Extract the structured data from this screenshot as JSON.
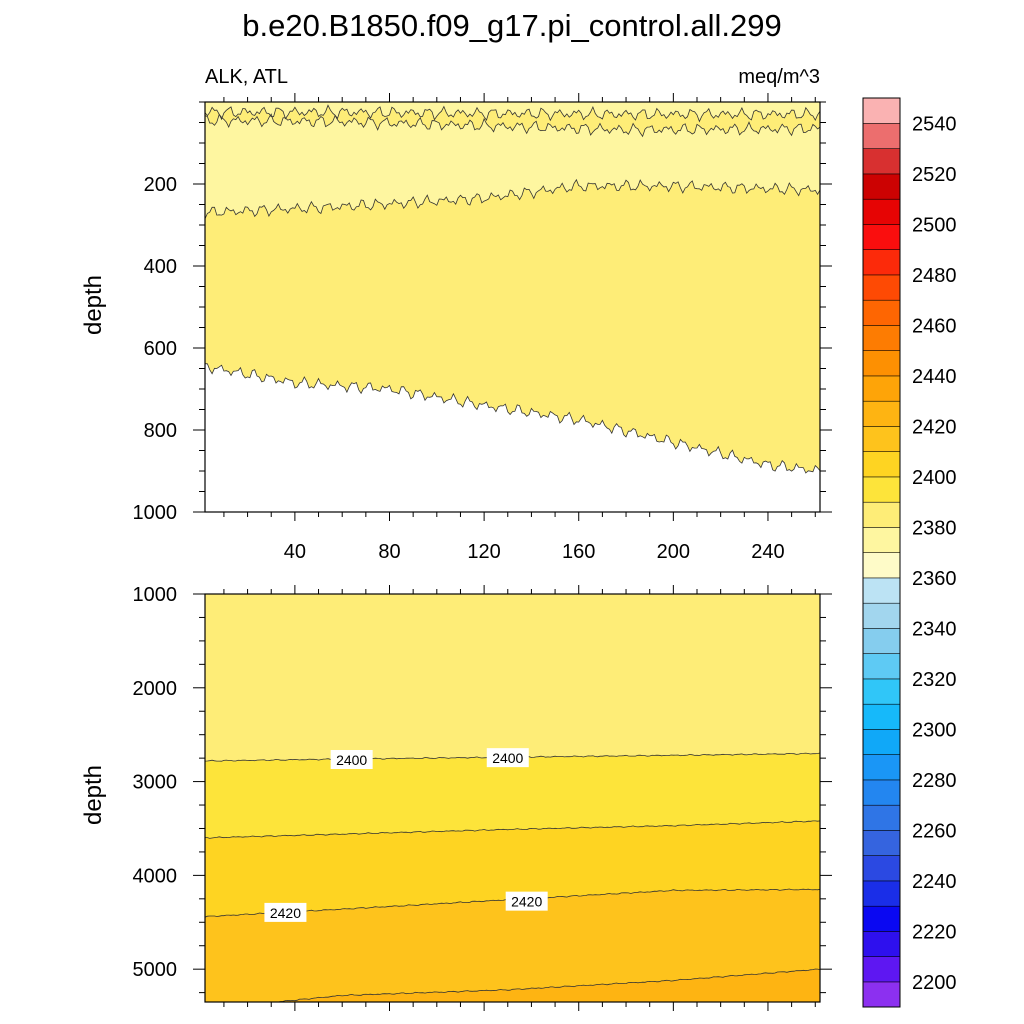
{
  "chart_data": {
    "type": "contour",
    "title": "b.e20.B1850.f09_g17.pi_control.all.299",
    "left_label": "ALK, ATL",
    "right_label": "meq/m^3",
    "x_tick_labels": [
      "40",
      "80",
      "120",
      "160",
      "200",
      "240"
    ],
    "x_ticks": [
      40,
      80,
      120,
      160,
      200,
      240
    ],
    "xlim": [
      2,
      262
    ],
    "colorbar": {
      "levels": [
        2200,
        2210,
        2220,
        2230,
        2240,
        2250,
        2260,
        2270,
        2280,
        2290,
        2300,
        2310,
        2320,
        2330,
        2340,
        2350,
        2360,
        2370,
        2380,
        2390,
        2400,
        2410,
        2420,
        2430,
        2440,
        2450,
        2460,
        2470,
        2480,
        2490,
        2500,
        2510,
        2520,
        2530,
        2540,
        2550
      ],
      "colors": [
        "#8c30f0",
        "#5e17f2",
        "#2e10ee",
        "#0a08f2",
        "#1a2ee8",
        "#2b49e2",
        "#3564df",
        "#2f75e6",
        "#2386f0",
        "#1a96f6",
        "#10a8f8",
        "#16b9fa",
        "#30c6f8",
        "#5ecaf4",
        "#85cdee",
        "#a2d6ee",
        "#bce3f4",
        "#fefbc8",
        "#fef6a0",
        "#feed77",
        "#fde43a",
        "#fed422",
        "#fec31c",
        "#feb412",
        "#fea408",
        "#fd9002",
        "#fd7c02",
        "#fe6602",
        "#fe4a04",
        "#fc2a0a",
        "#fa0e0e",
        "#e60404",
        "#cc0202",
        "#d83030",
        "#ec6e6e",
        "#fab2b2"
      ],
      "tick_labels": [
        "2200",
        "2220",
        "2240",
        "2260",
        "2280",
        "2300",
        "2320",
        "2340",
        "2360",
        "2380",
        "2400",
        "2420",
        "2440",
        "2460",
        "2480",
        "2500",
        "2520",
        "2540"
      ]
    },
    "panels": [
      {
        "name": "upper",
        "ylabel": "depth",
        "ylim": [
          0,
          1000
        ],
        "y_ticks": [
          200,
          400,
          600,
          800,
          1000
        ],
        "y_tick_labels": [
          "200",
          "400",
          "600",
          "800",
          "1000"
        ],
        "show_x_labels": true,
        "regions_top_to_bottom": [
          2380,
          2390,
          2380,
          2390
        ],
        "contours": [
          {
            "level": 2380,
            "x": [
              2,
              60,
              120,
              180,
              262
            ],
            "depth": [
              25,
              25,
              28,
              30,
              30
            ]
          },
          {
            "level": 2390,
            "x": [
              2,
              60,
              120,
              180,
              262
            ],
            "depth": [
              45,
              48,
              58,
              68,
              65
            ]
          },
          {
            "level": 2390,
            "x": [
              2,
              60,
              120,
              160,
              200,
              262
            ],
            "depth": [
              270,
              255,
              235,
              205,
              205,
              215
            ]
          },
          {
            "level": 2390,
            "x": [
              2,
              40,
              80,
              120,
              160,
              200,
              240,
              262
            ],
            "depth": [
              645,
              685,
              700,
              740,
              775,
              830,
              885,
              900
            ]
          }
        ],
        "labels": []
      },
      {
        "name": "lower",
        "ylabel": "depth",
        "ylim": [
          1000,
          5350
        ],
        "y_ticks": [
          1000,
          2000,
          3000,
          4000,
          5000
        ],
        "y_tick_labels": [
          "1000",
          "2000",
          "3000",
          "4000",
          "5000"
        ],
        "show_x_labels": false,
        "regions_top_to_bottom": [
          2390,
          2400,
          2410,
          2420,
          2430
        ],
        "contours": [
          {
            "level": 2400,
            "x": [
              2,
              60,
              130,
              200,
              262
            ],
            "depth": [
              2780,
              2760,
              2740,
              2720,
              2700
            ]
          },
          {
            "level": 2410,
            "x": [
              2,
              60,
              130,
              200,
              262
            ],
            "depth": [
              3600,
              3560,
              3510,
              3470,
              3420
            ]
          },
          {
            "level": 2420,
            "x": [
              2,
              60,
              130,
              200,
              262
            ],
            "depth": [
              4440,
              4360,
              4260,
              4160,
              4150
            ]
          },
          {
            "level": 2430,
            "x": [
              32,
              60,
              130,
              200,
              262
            ],
            "depth": [
              5350,
              5280,
              5220,
              5120,
              5000
            ]
          }
        ],
        "labels": [
          {
            "text": "2400",
            "x": 64,
            "depth": 2770
          },
          {
            "text": "2400",
            "x": 130,
            "depth": 2750
          },
          {
            "text": "2420",
            "x": 36,
            "depth": 4400
          },
          {
            "text": "2420",
            "x": 138,
            "depth": 4280
          }
        ]
      }
    ]
  }
}
